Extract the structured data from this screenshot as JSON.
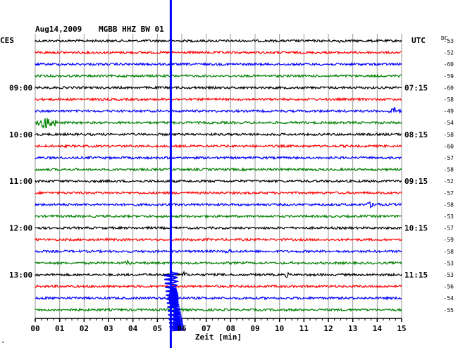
{
  "header": {
    "date": "Aug14,2009",
    "station": "MGBB HHZ BW 01",
    "left_tz": "CES",
    "right_tz": "UTC",
    "dc_label": "DC"
  },
  "chart_data": {
    "type": "line",
    "title": "Aug14,2009   MGBB HHZ BW 01",
    "xlabel": "Zeit [min]",
    "x_range": [
      0,
      15
    ],
    "x_ticks": [
      "00",
      "01",
      "02",
      "03",
      "04",
      "05",
      "06",
      "07",
      "08",
      "09",
      "10",
      "11",
      "12",
      "13",
      "14",
      "15"
    ],
    "trace_colors": [
      "#000000",
      "#ff0000",
      "#0000ff",
      "#008000"
    ],
    "trace_count": 24,
    "left_time_labels": [
      {
        "trace": 4,
        "label": "09:00"
      },
      {
        "trace": 8,
        "label": "10:00"
      },
      {
        "trace": 12,
        "label": "11:00"
      },
      {
        "trace": 16,
        "label": "12:00"
      },
      {
        "trace": 20,
        "label": "13:00"
      }
    ],
    "right_time_labels": [
      {
        "trace": 4,
        "label": "07:15"
      },
      {
        "trace": 8,
        "label": "08:15"
      },
      {
        "trace": 12,
        "label": "09:15"
      },
      {
        "trace": 16,
        "label": "10:15"
      },
      {
        "trace": 20,
        "label": "11:15"
      }
    ],
    "dc_offsets": [
      "-53",
      "-52",
      "-60",
      "-59",
      "-60",
      "-58",
      "-49",
      "-54",
      "-58",
      "-60",
      "-57",
      "-58",
      "-52",
      "-57",
      "-58",
      "-53",
      "-57",
      "-59",
      "-58",
      "-53",
      "-53",
      "-56",
      "-54",
      "-55"
    ],
    "events": [
      {
        "trace": 7,
        "minute": 0.5,
        "amplitude": 10,
        "duration_min": 0.6
      },
      {
        "trace": 6,
        "minute": 14.7,
        "amplitude": 6,
        "duration_min": 0.4
      },
      {
        "trace": 14,
        "minute": 13.8,
        "amplitude": 5,
        "duration_min": 0.5
      },
      {
        "trace": 18,
        "minute": 7.9,
        "amplitude": 4,
        "duration_min": 0.3
      },
      {
        "trace": 19,
        "minute": 3.8,
        "amplitude": 5,
        "duration_min": 0.2
      },
      {
        "trace": 20,
        "minute": 6.1,
        "amplitude": 5,
        "duration_min": 0.2
      },
      {
        "trace": 20,
        "minute": 10.3,
        "amplitude": 4,
        "duration_min": 0.2
      },
      {
        "trace": 0,
        "minute": 12.5,
        "amplitude": 3,
        "duration_min": 0.3
      }
    ],
    "large_event": {
      "minute": 5.55,
      "start_trace": 0,
      "peak_trace": 22,
      "color": "#0000ff"
    }
  }
}
